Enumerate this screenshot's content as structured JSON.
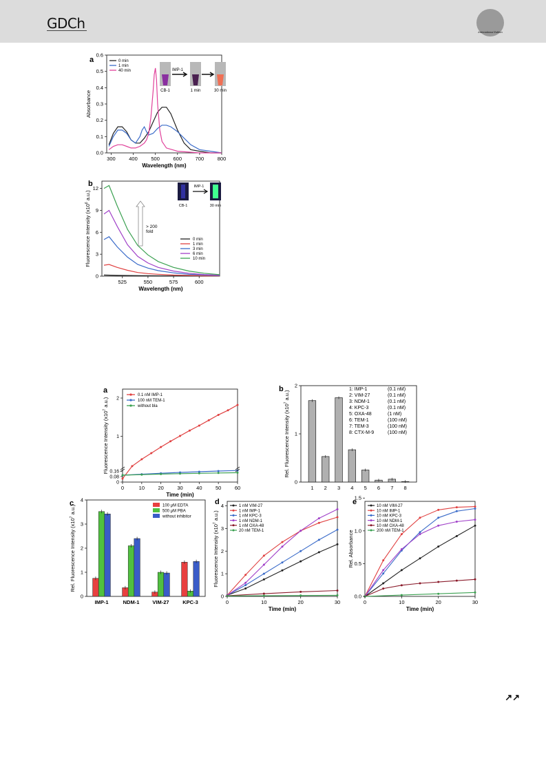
{
  "header": {
    "logo": "GDCh",
    "edition": "International Edition",
    "continued": "↗↗"
  },
  "chart_data": [
    {
      "id": "fig1a",
      "panel": "a",
      "type": "line",
      "xlabel": "Wavelength (nm)",
      "ylabel": "Absorbance",
      "xlim": [
        280,
        800
      ],
      "ylim": [
        0,
        0.6
      ],
      "xticks": [
        300,
        400,
        500,
        600,
        700,
        800
      ],
      "yticks": [
        0.0,
        0.1,
        0.2,
        0.3,
        0.4,
        0.5,
        0.6
      ],
      "legend": [
        "0 min",
        "1 min",
        "40 min"
      ],
      "series": [
        {
          "name": "0 min",
          "color": "#222222",
          "x": [
            290,
            310,
            330,
            350,
            370,
            390,
            410,
            430,
            450,
            470,
            490,
            510,
            530,
            550,
            570,
            600,
            630,
            660,
            700,
            750,
            800
          ],
          "y": [
            0.05,
            0.12,
            0.16,
            0.16,
            0.13,
            0.08,
            0.06,
            0.06,
            0.09,
            0.13,
            0.19,
            0.25,
            0.28,
            0.28,
            0.24,
            0.14,
            0.06,
            0.02,
            0.01,
            0.0,
            0.0
          ]
        },
        {
          "name": "1 min",
          "color": "#3a6bc9",
          "x": [
            290,
            310,
            330,
            350,
            370,
            390,
            410,
            430,
            440,
            450,
            460,
            470,
            490,
            510,
            530,
            550,
            570,
            600,
            630,
            660,
            700,
            750,
            800
          ],
          "y": [
            0.04,
            0.1,
            0.14,
            0.14,
            0.12,
            0.08,
            0.06,
            0.1,
            0.14,
            0.16,
            0.13,
            0.11,
            0.12,
            0.15,
            0.17,
            0.17,
            0.16,
            0.13,
            0.09,
            0.05,
            0.02,
            0.01,
            0.0
          ]
        },
        {
          "name": "40 min",
          "color": "#e0409a",
          "x": [
            290,
            310,
            330,
            350,
            370,
            390,
            410,
            430,
            450,
            460,
            470,
            480,
            490,
            495,
            500,
            505,
            510,
            520,
            530,
            550,
            600,
            700,
            800
          ],
          "y": [
            0.02,
            0.04,
            0.05,
            0.05,
            0.04,
            0.03,
            0.03,
            0.04,
            0.06,
            0.08,
            0.12,
            0.22,
            0.38,
            0.48,
            0.52,
            0.45,
            0.3,
            0.14,
            0.07,
            0.03,
            0.01,
            0.0,
            0.0
          ]
        }
      ],
      "inset": {
        "reagent": "IMP-1",
        "labels": [
          "CB-1",
          "1 min",
          "30 min"
        ]
      }
    },
    {
      "id": "fig1b",
      "panel": "b",
      "type": "line",
      "xlabel": "Wavelength (nm)",
      "ylabel": "Fluorescence Intensity (x10",
      "ylabel_exp": "6",
      "ylabel_tail": " a.u.)",
      "xlim": [
        505,
        620
      ],
      "ylim": [
        0,
        13
      ],
      "xticks": [
        525,
        550,
        575,
        600
      ],
      "yticks": [
        0,
        3,
        6,
        9,
        12
      ],
      "legend": [
        "0  min",
        "1  min",
        "3  min",
        "6  min",
        "10 min"
      ],
      "annotation": [
        "> 200",
        "fold"
      ],
      "series": [
        {
          "name": "0  min",
          "color": "#222222",
          "x": [
            507,
            520,
            540,
            560,
            580,
            600,
            620
          ],
          "y": [
            0.15,
            0.1,
            0.08,
            0.05,
            0.03,
            0.02,
            0.01
          ]
        },
        {
          "name": "1  min",
          "color": "#e04040",
          "x": [
            507,
            512,
            520,
            530,
            540,
            550,
            560,
            575,
            590,
            605,
            620
          ],
          "y": [
            1.5,
            1.6,
            1.2,
            0.8,
            0.5,
            0.35,
            0.25,
            0.15,
            0.1,
            0.05,
            0.03
          ]
        },
        {
          "name": "3  min",
          "color": "#3a6bc9",
          "x": [
            507,
            512,
            520,
            530,
            540,
            550,
            560,
            575,
            590,
            605,
            620
          ],
          "y": [
            5.0,
            5.4,
            4.0,
            2.6,
            1.6,
            1.1,
            0.75,
            0.45,
            0.25,
            0.15,
            0.08
          ]
        },
        {
          "name": "6  min",
          "color": "#a040c8",
          "x": [
            507,
            512,
            520,
            530,
            540,
            550,
            560,
            575,
            590,
            605,
            620
          ],
          "y": [
            8.5,
            9.0,
            6.8,
            4.3,
            2.7,
            1.8,
            1.2,
            0.7,
            0.4,
            0.22,
            0.12
          ]
        },
        {
          "name": "10 min",
          "color": "#3aa050",
          "x": [
            507,
            512,
            520,
            530,
            540,
            550,
            560,
            575,
            590,
            605,
            620
          ],
          "y": [
            12.0,
            12.4,
            9.6,
            6.4,
            4.2,
            2.9,
            2.0,
            1.2,
            0.7,
            0.4,
            0.2
          ]
        }
      ],
      "inset": {
        "reagent": "IMP-1",
        "labels": [
          "CB-1",
          "30 min"
        ]
      }
    },
    {
      "id": "fig2a",
      "panel": "a",
      "type": "line",
      "xlabel": "Time (min)",
      "ylabel": "Fluorescence Intensity (x10",
      "ylabel_exp": "7",
      "ylabel_tail": " a.u.)",
      "xlim": [
        0,
        60
      ],
      "xticks": [
        0,
        10,
        20,
        30,
        40,
        50,
        60
      ],
      "yticks_labels": [
        "0",
        "0.08",
        "0.16",
        "1",
        "2"
      ],
      "legend": [
        "0.1 nM IMP-1",
        "100 nM TEM-1",
        "without bla"
      ],
      "series": [
        {
          "name": "0.1 nM IMP-1",
          "color": "#e04040",
          "x": [
            0,
            5,
            10,
            15,
            20,
            25,
            30,
            35,
            40,
            45,
            50,
            55,
            60
          ],
          "y": [
            0.05,
            0.22,
            0.4,
            0.56,
            0.72,
            0.87,
            1.01,
            1.15,
            1.28,
            1.42,
            1.56,
            1.68,
            1.82
          ]
        },
        {
          "name": "100 nM TEM-1",
          "color": "#3a6bc9",
          "x": [
            0,
            10,
            20,
            30,
            40,
            50,
            60
          ],
          "y": [
            0.1,
            0.114,
            0.128,
            0.14,
            0.15,
            0.16,
            0.168
          ]
        },
        {
          "name": "without bla",
          "color": "#3aa050",
          "x": [
            0,
            10,
            20,
            30,
            40,
            50,
            60
          ],
          "y": [
            0.1,
            0.108,
            0.116,
            0.122,
            0.127,
            0.132,
            0.136
          ]
        }
      ]
    },
    {
      "id": "fig2b",
      "panel": "b",
      "type": "bar",
      "xlabel": "",
      "ylabel": "Rel. Fluorescence Intensity (x10",
      "ylabel_exp": "7",
      "ylabel_tail": " a.u.)",
      "ylim": [
        0,
        2
      ],
      "yticks": [
        0,
        1,
        2
      ],
      "categories": [
        "1",
        "2",
        "3",
        "4",
        "5",
        "6",
        "7",
        "8"
      ],
      "values": [
        1.69,
        0.53,
        1.75,
        0.67,
        0.25,
        0.04,
        0.06,
        0.01
      ],
      "legend": [
        [
          "1: IMP-1",
          "(0.1 nM)"
        ],
        [
          "2: VIM-27",
          "(0.1 nM)"
        ],
        [
          "3: NDM-1",
          "(0.1 nM)"
        ],
        [
          "4: KPC-3",
          "(0.1 nM)"
        ],
        [
          "5: OXA-48",
          "(1 nM)"
        ],
        [
          "6: TEM-1",
          "(100 nM)"
        ],
        [
          "7: TEM-3",
          "(100 nM)"
        ],
        [
          "8: CTX-M-9",
          "(100 nM)"
        ]
      ]
    },
    {
      "id": "fig2c",
      "panel": "c",
      "type": "bar",
      "xlabel": "",
      "ylabel": "Rel. Fluorescence Intensity (x10",
      "ylabel_exp": "7",
      "ylabel_tail": " a.u.)",
      "ylim": [
        0,
        4
      ],
      "yticks": [
        0,
        1,
        2,
        3,
        4
      ],
      "categories": [
        "IMP-1",
        "NDM-1",
        "VIM-27",
        "KPC-3"
      ],
      "legend": [
        "100 μM EDTA",
        "500 μM PBA",
        "without inhibitor"
      ],
      "series": [
        {
          "name": "100 μM EDTA",
          "color": "#e84040",
          "values": [
            0.75,
            0.36,
            0.18,
            1.42
          ]
        },
        {
          "name": "500 μM PBA",
          "color": "#50c040",
          "values": [
            3.52,
            2.1,
            1.0,
            0.22
          ]
        },
        {
          "name": "without inhibitor",
          "color": "#3a5cc8",
          "values": [
            3.42,
            2.4,
            0.97,
            1.45
          ]
        }
      ]
    },
    {
      "id": "fig2d",
      "panel": "d",
      "type": "line",
      "xlabel": "Time (min)",
      "ylabel": "Fluorescence Intensity (x10",
      "ylabel_exp": "7",
      "ylabel_tail": " a.u.)",
      "xlim": [
        0,
        30
      ],
      "ylim": [
        0,
        4.2
      ],
      "xticks": [
        0,
        10,
        20,
        30
      ],
      "yticks": [
        0,
        1,
        2,
        3,
        4
      ],
      "legend": [
        "1 nM VIM-27",
        "1 nM IMP-1",
        "1 nM KPC-3",
        "1 nM NDM-1",
        "1 nM OXA-48",
        "20 nM TEM-1"
      ],
      "series": [
        {
          "name": "1 nM VIM-27",
          "color": "#222222",
          "x": [
            0,
            5,
            10,
            15,
            20,
            25,
            30
          ],
          "y": [
            0.05,
            0.35,
            0.75,
            1.15,
            1.55,
            1.95,
            2.3
          ]
        },
        {
          "name": "1 nM IMP-1",
          "color": "#e04040",
          "x": [
            0,
            5,
            10,
            15,
            20,
            25,
            30
          ],
          "y": [
            0.05,
            0.95,
            1.8,
            2.4,
            2.9,
            3.25,
            3.5
          ]
        },
        {
          "name": "1 nM KPC-3",
          "color": "#3a6bc9",
          "x": [
            0,
            5,
            10,
            15,
            20,
            25,
            30
          ],
          "y": [
            0.05,
            0.5,
            1.0,
            1.5,
            2.0,
            2.5,
            2.95
          ]
        },
        {
          "name": "1 nM NDM-1",
          "color": "#a040c8",
          "x": [
            0,
            5,
            10,
            15,
            20,
            25,
            30
          ],
          "y": [
            0.05,
            0.6,
            1.4,
            2.2,
            2.9,
            3.45,
            3.85
          ]
        },
        {
          "name": "1 nM OXA-48",
          "color": "#8a1a2a",
          "x": [
            0,
            10,
            20,
            30
          ],
          "y": [
            0.03,
            0.12,
            0.2,
            0.26
          ]
        },
        {
          "name": "20 nM TEM-1",
          "color": "#3aa050",
          "x": [
            0,
            10,
            20,
            30
          ],
          "y": [
            0.02,
            0.03,
            0.04,
            0.05
          ]
        }
      ]
    },
    {
      "id": "fig2e",
      "panel": "e",
      "type": "line",
      "xlabel": "Time (min)",
      "ylabel": "Rel. Absorbance",
      "xlim": [
        0,
        30
      ],
      "ylim": [
        0,
        1.45
      ],
      "xticks": [
        0,
        10,
        20,
        30
      ],
      "yticks": [
        0.0,
        0.5,
        1.0,
        1.5
      ],
      "legend": [
        "10 nM VIM-27",
        "10 nM IMP-1",
        "10 nM KPC-3",
        "10 nM NDM-1",
        "10 nM OXA-48",
        "200 nM TEM-1"
      ],
      "series": [
        {
          "name": "10 nM VIM-27",
          "color": "#222222",
          "x": [
            0,
            5,
            10,
            15,
            20,
            25,
            30
          ],
          "y": [
            0.0,
            0.2,
            0.4,
            0.58,
            0.76,
            0.92,
            1.08
          ]
        },
        {
          "name": "10 nM IMP-1",
          "color": "#e04040",
          "x": [
            0,
            5,
            10,
            15,
            20,
            25,
            30
          ],
          "y": [
            0.0,
            0.55,
            0.95,
            1.2,
            1.32,
            1.36,
            1.37
          ]
        },
        {
          "name": "10 nM KPC-3",
          "color": "#3a6bc9",
          "x": [
            0,
            5,
            10,
            15,
            20,
            25,
            30
          ],
          "y": [
            0.0,
            0.35,
            0.7,
            0.98,
            1.2,
            1.3,
            1.34
          ]
        },
        {
          "name": "10 nM NDM-1",
          "color": "#a040c8",
          "x": [
            0,
            5,
            10,
            15,
            20,
            25,
            30
          ],
          "y": [
            0.0,
            0.4,
            0.72,
            0.95,
            1.08,
            1.14,
            1.17
          ]
        },
        {
          "name": "10 nM OXA-48",
          "color": "#8a1a2a",
          "x": [
            0,
            5,
            10,
            15,
            20,
            25,
            30
          ],
          "y": [
            0.0,
            0.12,
            0.17,
            0.2,
            0.22,
            0.24,
            0.26
          ]
        },
        {
          "name": "200 nM TEM-1",
          "color": "#3aa050",
          "x": [
            0,
            10,
            20,
            30
          ],
          "y": [
            0.0,
            0.02,
            0.04,
            0.06
          ]
        }
      ]
    }
  ]
}
